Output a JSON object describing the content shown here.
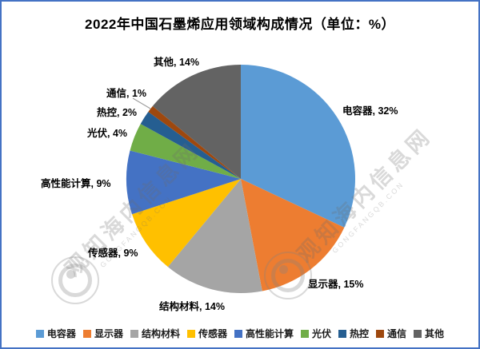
{
  "title": "2022年中国石墨烯应用领域构成情况（单位：%）",
  "watermark": {
    "cn": "观知海内信息网",
    "en": "GONGFANGQB.CON"
  },
  "chart_data": {
    "type": "pie",
    "title": "2022年中国石墨烯应用领域构成情况（单位：%）",
    "unit": "%",
    "start_angle_deg": 0,
    "direction": "clockwise",
    "categories": [
      "电容器",
      "显示器",
      "结构材料",
      "传感器",
      "高性能计算",
      "光伏",
      "热控",
      "通信",
      "其他"
    ],
    "values": [
      32,
      15,
      14,
      9,
      9,
      4,
      2,
      1,
      14
    ],
    "colors": [
      "#5B9BD5",
      "#ED7D31",
      "#A5A5A5",
      "#FFC000",
      "#4472C4",
      "#70AD47",
      "#255E91",
      "#9E480E",
      "#636363"
    ],
    "label_format": "{name}, {value}%",
    "legend_position": "bottom",
    "legend_labels": [
      "电容器",
      "显示器",
      "结构材料",
      "传感器",
      "高性能计算",
      "光伏",
      "热控",
      "通信",
      "其他"
    ]
  }
}
